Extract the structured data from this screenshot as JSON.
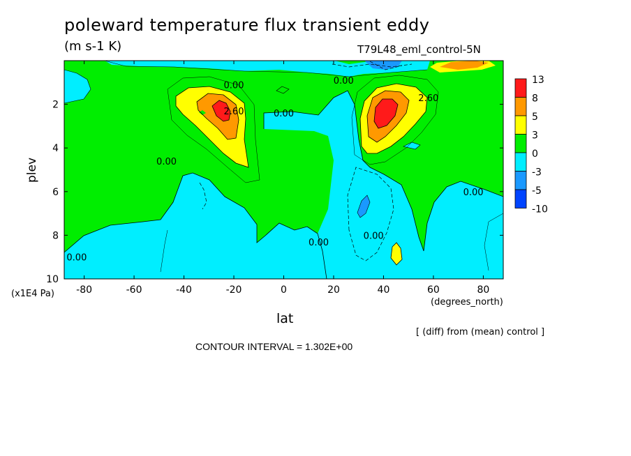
{
  "header": {
    "title": "poleward temperature flux transient eddy",
    "units": "(m s-1 K)",
    "run_id": "T79L48_eml_control-5N"
  },
  "footer": {
    "diff_note": "[ (diff) from (mean) control ]",
    "contour_interval": "CONTOUR INTERVAL = 1.302E+00"
  },
  "chart_data": {
    "type": "heatmap",
    "title": "poleward temperature flux transient eddy",
    "xlabel": "lat",
    "x_unit": "(degrees_north)",
    "ylabel": "plev",
    "y_unit": "(x1E4 Pa)",
    "xlim": [
      -88,
      88
    ],
    "ylim": [
      0,
      10
    ],
    "y_inverted": true,
    "x_ticks": [
      -80,
      -60,
      -40,
      -20,
      0,
      20,
      40,
      60,
      80
    ],
    "y_ticks": [
      2,
      4,
      6,
      8,
      10
    ],
    "colorbar": {
      "levels": [
        "13",
        "8",
        "5",
        "3",
        "0",
        "-3",
        "-5",
        "-10"
      ],
      "colors": [
        "#ff1a1a",
        "#ff9900",
        "#ffff00",
        "#00ee00",
        "#00eeff",
        "#1a99ff",
        "#0044ff"
      ]
    },
    "contour_labels": [
      {
        "text": "0.00",
        "lat": -20,
        "plev": 1.1
      },
      {
        "text": "0.00",
        "lat": 0,
        "plev": 2.4
      },
      {
        "text": "2.60",
        "lat": -20,
        "plev": 2.3
      },
      {
        "text": "0.00",
        "lat": 24,
        "plev": 0.9
      },
      {
        "text": "2.60",
        "lat": 58,
        "plev": 1.7
      },
      {
        "text": "0.00",
        "lat": -47,
        "plev": 4.6
      },
      {
        "text": "0.00",
        "lat": 76,
        "plev": 6.0
      },
      {
        "text": "0.00",
        "lat": 36,
        "plev": 8.0
      },
      {
        "text": "0.00",
        "lat": 14,
        "plev": 8.3
      },
      {
        "text": "0.00",
        "lat": -83,
        "plev": 9.0
      }
    ],
    "regions": [
      {
        "name": "sh-upper-max",
        "lat": -25,
        "plev": 2.4,
        "peak": 13
      },
      {
        "name": "nh-upper-max",
        "lat": 43,
        "plev": 2.5,
        "peak": 13
      },
      {
        "name": "nh-top-max",
        "lat": 75,
        "plev": 0.3,
        "peak": 8
      },
      {
        "name": "nh-mid-min",
        "lat": 33,
        "plev": 7.0,
        "peak": -5
      },
      {
        "name": "nh-top-min",
        "lat": 40,
        "plev": 0.3,
        "peak": -5
      },
      {
        "name": "nh-low-max",
        "lat": 47,
        "plev": 8.7,
        "peak": 3
      }
    ]
  }
}
